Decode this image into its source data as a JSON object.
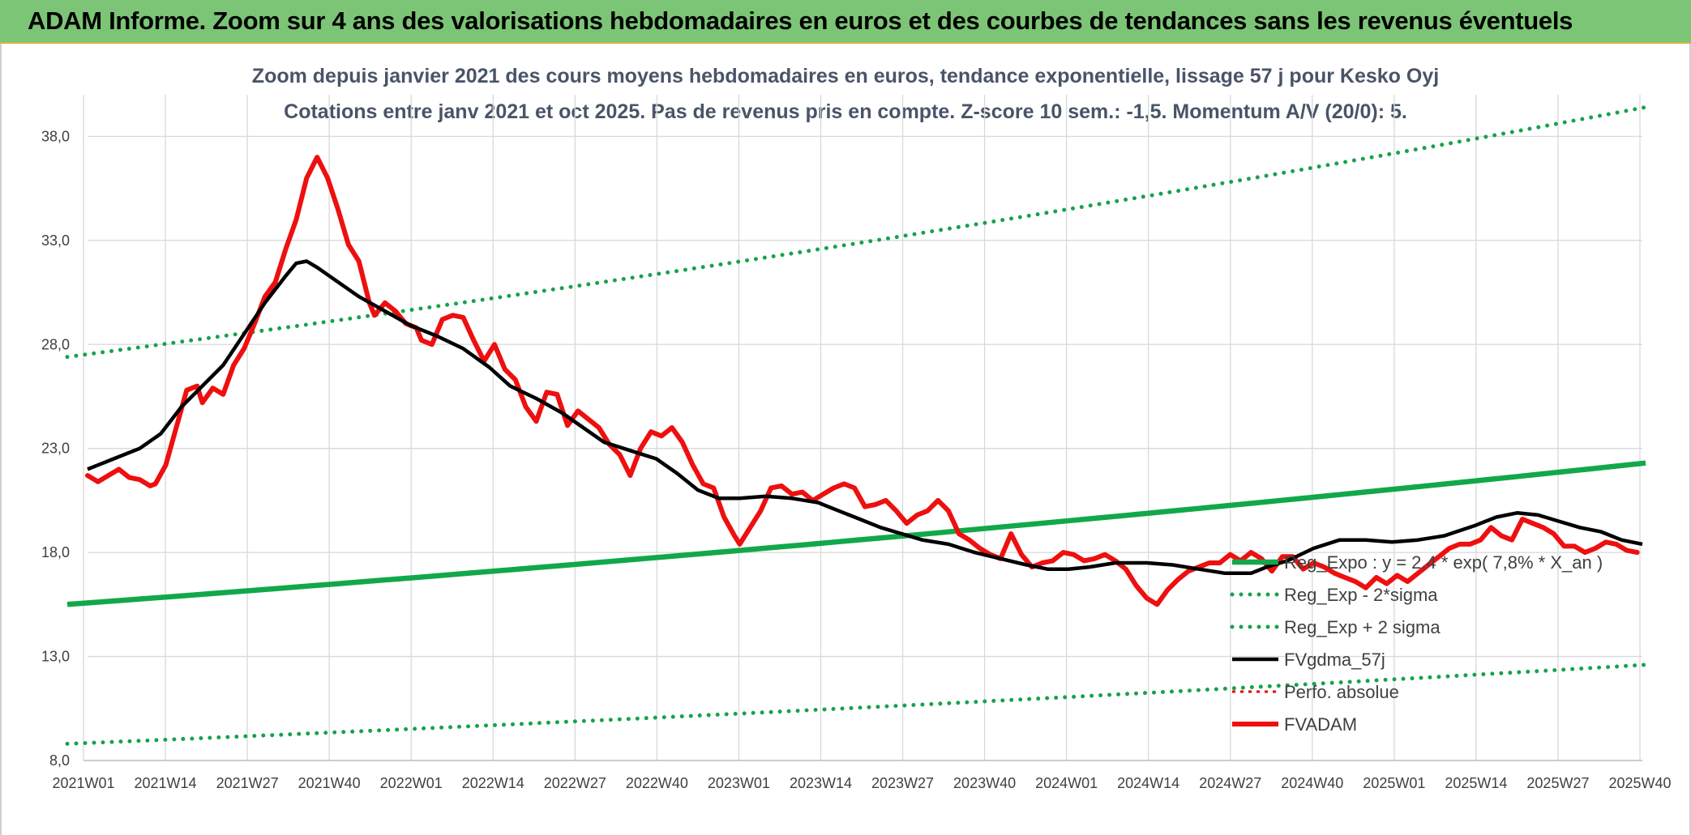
{
  "header": {
    "title": "ADAM Informe. Zoom sur 4 ans des valorisations hebdomadaires en euros et des courbes de tendances sans les revenus éventuels"
  },
  "chart_data": {
    "type": "line",
    "title_line1": "Zoom depuis janvier 2021 des cours moyens hebdomadaires en euros, tendance exponentielle, lissage 57 j pour Kesko Oyj",
    "title_line2": "Cotations entre janv 2021 et oct 2025. Pas de revenus pris en compte. Z-score 10 sem.: -1,5. Momentum A/V (20/0): 5.",
    "ylim": [
      8,
      40
    ],
    "yticks": [
      8,
      13,
      18,
      23,
      28,
      33,
      38
    ],
    "ytick_labels": [
      "8,0",
      "13,0",
      "18,0",
      "23,0",
      "28,0",
      "33,0",
      "38,0"
    ],
    "x_count": 249,
    "xtick_labels": [
      "2021W01",
      "2021W14",
      "2021W27",
      "2021W40",
      "2022W01",
      "2022W14",
      "2022W27",
      "2022W40",
      "2023W01",
      "2023W14",
      "2023W27",
      "2023W40",
      "2024W01",
      "2024W14",
      "2024W27",
      "2024W40",
      "2025W01",
      "2025W14",
      "2025W27",
      "2025W40"
    ],
    "colors": {
      "trend": "#11a84a",
      "band": "#16a349",
      "sma": "#000000",
      "perf": "#e00000",
      "price": "#ee0f0f",
      "grid": "#d9d9d9"
    },
    "series": [
      {
        "name": "Reg_Expo : y = 2,4 * exp( 7,8% *  X_an )",
        "style": "solid-thick",
        "start": 15.5,
        "end": 22.3
      },
      {
        "name": "Reg_Exp - 2*sigma",
        "style": "dotted",
        "start": 8.8,
        "end": 12.6
      },
      {
        "name": "Reg_Exp + 2 sigma",
        "style": "dotted",
        "start": 27.4,
        "end": 39.4
      },
      {
        "name": "FVgdma_57j",
        "style": "solid",
        "points": [
          [
            0,
            22.0
          ],
          [
            5,
            22.5
          ],
          [
            10,
            23.0
          ],
          [
            14,
            23.7
          ],
          [
            18,
            25.0
          ],
          [
            22,
            26.0
          ],
          [
            26,
            27.0
          ],
          [
            30,
            28.5
          ],
          [
            34,
            30.0
          ],
          [
            38,
            31.3
          ],
          [
            40,
            31.9
          ],
          [
            42,
            32.0
          ],
          [
            44,
            31.7
          ],
          [
            48,
            31.0
          ],
          [
            52,
            30.3
          ],
          [
            57,
            29.6
          ],
          [
            62,
            28.9
          ],
          [
            67,
            28.4
          ],
          [
            72,
            27.8
          ],
          [
            77,
            26.9
          ],
          [
            81,
            26.0
          ],
          [
            86,
            25.4
          ],
          [
            91,
            24.7
          ],
          [
            95,
            24.0
          ],
          [
            99,
            23.3
          ],
          [
            104,
            22.9
          ],
          [
            109,
            22.5
          ],
          [
            113,
            21.8
          ],
          [
            117,
            21.0
          ],
          [
            121,
            20.6
          ],
          [
            125,
            20.6
          ],
          [
            130,
            20.7
          ],
          [
            135,
            20.6
          ],
          [
            140,
            20.4
          ],
          [
            144,
            20.0
          ],
          [
            148,
            19.6
          ],
          [
            152,
            19.2
          ],
          [
            156,
            18.9
          ],
          [
            160,
            18.6
          ],
          [
            165,
            18.4
          ],
          [
            170,
            18.0
          ],
          [
            175,
            17.7
          ],
          [
            180,
            17.4
          ],
          [
            184,
            17.2
          ],
          [
            188,
            17.2
          ],
          [
            192,
            17.3
          ],
          [
            197,
            17.5
          ],
          [
            203,
            17.5
          ],
          [
            208,
            17.4
          ],
          [
            213,
            17.2
          ],
          [
            218,
            17.0
          ],
          [
            223,
            17.0
          ],
          [
            226,
            17.3
          ],
          [
            230,
            17.6
          ],
          [
            235,
            18.2
          ],
          [
            240,
            18.6
          ],
          [
            245,
            18.6
          ],
          [
            250,
            18.5
          ],
          [
            255,
            18.6
          ],
          [
            260,
            18.8
          ],
          [
            266,
            19.3
          ],
          [
            270,
            19.7
          ],
          [
            274,
            19.9
          ],
          [
            278,
            19.8
          ],
          [
            282,
            19.5
          ],
          [
            286,
            19.2
          ],
          [
            290,
            19.0
          ],
          [
            294,
            18.6
          ],
          [
            298,
            18.4
          ]
        ]
      },
      {
        "name": "Perfo. absolue",
        "style": "dotted"
      },
      {
        "name": "FVADAM",
        "style": "solid-thick",
        "points": [
          [
            0,
            21.7
          ],
          [
            2,
            21.4
          ],
          [
            4,
            21.7
          ],
          [
            6,
            22.0
          ],
          [
            8,
            21.6
          ],
          [
            10,
            21.5
          ],
          [
            12,
            21.2
          ],
          [
            13,
            21.3
          ],
          [
            15,
            22.2
          ],
          [
            17,
            24.0
          ],
          [
            19,
            25.8
          ],
          [
            21,
            26.0
          ],
          [
            22,
            25.2
          ],
          [
            24,
            25.9
          ],
          [
            26,
            25.6
          ],
          [
            28,
            27.0
          ],
          [
            30,
            27.8
          ],
          [
            32,
            29.0
          ],
          [
            34,
            30.3
          ],
          [
            36,
            31.0
          ],
          [
            38,
            32.6
          ],
          [
            40,
            34.0
          ],
          [
            42,
            36.0
          ],
          [
            44,
            37.0
          ],
          [
            46,
            36.0
          ],
          [
            48,
            34.5
          ],
          [
            50,
            32.8
          ],
          [
            52,
            32.0
          ],
          [
            54,
            30.0
          ],
          [
            55,
            29.4
          ],
          [
            57,
            30.0
          ],
          [
            59,
            29.6
          ],
          [
            61,
            29.0
          ],
          [
            63,
            28.8
          ],
          [
            64,
            28.2
          ],
          [
            66,
            28.0
          ],
          [
            68,
            29.2
          ],
          [
            70,
            29.4
          ],
          [
            72,
            29.3
          ],
          [
            74,
            28.2
          ],
          [
            76,
            27.2
          ],
          [
            78,
            28.0
          ],
          [
            80,
            26.8
          ],
          [
            82,
            26.3
          ],
          [
            84,
            25.0
          ],
          [
            86,
            24.3
          ],
          [
            88,
            25.7
          ],
          [
            90,
            25.6
          ],
          [
            92,
            24.1
          ],
          [
            94,
            24.8
          ],
          [
            96,
            24.4
          ],
          [
            98,
            24.0
          ],
          [
            100,
            23.2
          ],
          [
            102,
            22.7
          ],
          [
            104,
            21.7
          ],
          [
            106,
            23.0
          ],
          [
            108,
            23.8
          ],
          [
            110,
            23.6
          ],
          [
            112,
            24.0
          ],
          [
            114,
            23.3
          ],
          [
            116,
            22.2
          ],
          [
            118,
            21.3
          ],
          [
            120,
            21.1
          ],
          [
            122,
            19.7
          ],
          [
            124,
            18.8
          ],
          [
            125,
            18.4
          ],
          [
            127,
            19.2
          ],
          [
            129,
            20.0
          ],
          [
            131,
            21.1
          ],
          [
            133,
            21.2
          ],
          [
            135,
            20.8
          ],
          [
            137,
            20.9
          ],
          [
            139,
            20.5
          ],
          [
            141,
            20.8
          ],
          [
            143,
            21.1
          ],
          [
            145,
            21.3
          ],
          [
            147,
            21.1
          ],
          [
            149,
            20.2
          ],
          [
            151,
            20.3
          ],
          [
            153,
            20.5
          ],
          [
            155,
            20.0
          ],
          [
            157,
            19.4
          ],
          [
            159,
            19.8
          ],
          [
            161,
            20.0
          ],
          [
            163,
            20.5
          ],
          [
            165,
            20.0
          ],
          [
            167,
            18.9
          ],
          [
            169,
            18.6
          ],
          [
            171,
            18.2
          ],
          [
            173,
            17.9
          ],
          [
            175,
            17.7
          ],
          [
            177,
            18.9
          ],
          [
            179,
            17.9
          ],
          [
            181,
            17.3
          ],
          [
            183,
            17.5
          ],
          [
            185,
            17.6
          ],
          [
            187,
            18.0
          ],
          [
            189,
            17.9
          ],
          [
            191,
            17.6
          ],
          [
            193,
            17.7
          ],
          [
            195,
            17.9
          ],
          [
            197,
            17.6
          ],
          [
            199,
            17.2
          ],
          [
            201,
            16.4
          ],
          [
            203,
            15.8
          ],
          [
            205,
            15.5
          ],
          [
            207,
            16.2
          ],
          [
            209,
            16.7
          ],
          [
            211,
            17.1
          ],
          [
            213,
            17.3
          ],
          [
            215,
            17.5
          ],
          [
            217,
            17.5
          ],
          [
            219,
            17.9
          ],
          [
            221,
            17.6
          ],
          [
            223,
            18.0
          ],
          [
            225,
            17.7
          ],
          [
            227,
            17.1
          ],
          [
            229,
            17.8
          ],
          [
            231,
            17.8
          ],
          [
            233,
            17.2
          ],
          [
            235,
            17.5
          ],
          [
            237,
            17.3
          ],
          [
            239,
            17.0
          ],
          [
            241,
            16.8
          ],
          [
            243,
            16.6
          ],
          [
            245,
            16.3
          ],
          [
            247,
            16.8
          ],
          [
            249,
            16.5
          ],
          [
            251,
            16.9
          ],
          [
            253,
            16.6
          ],
          [
            255,
            17.0
          ],
          [
            257,
            17.4
          ],
          [
            259,
            17.8
          ],
          [
            261,
            18.2
          ],
          [
            263,
            18.4
          ],
          [
            265,
            18.4
          ],
          [
            267,
            18.6
          ],
          [
            269,
            19.2
          ],
          [
            271,
            18.8
          ],
          [
            273,
            18.6
          ],
          [
            275,
            19.6
          ],
          [
            277,
            19.4
          ],
          [
            279,
            19.2
          ],
          [
            281,
            18.9
          ],
          [
            283,
            18.3
          ],
          [
            285,
            18.3
          ],
          [
            287,
            18.0
          ],
          [
            289,
            18.2
          ],
          [
            291,
            18.5
          ],
          [
            293,
            18.4
          ],
          [
            295,
            18.1
          ],
          [
            297,
            18.0
          ]
        ]
      }
    ]
  }
}
